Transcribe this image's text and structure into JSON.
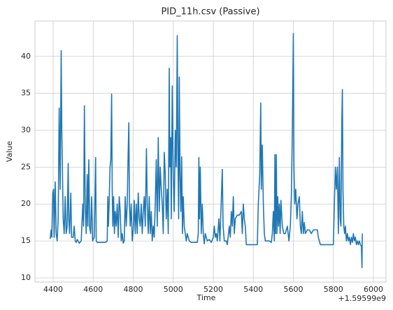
{
  "chart_data": {
    "type": "line",
    "title": "PID_11h.csv (Passive)",
    "xlabel": "Time",
    "ylabel": "Value",
    "x_offset_label": "+1.59599e9",
    "color": "#1f77b4",
    "grid": true,
    "xlim": [
      4309,
      6063
    ],
    "ylim": [
      9.43,
      44.8
    ],
    "xticks": [
      4400,
      4600,
      4800,
      5000,
      5200,
      5400,
      5600,
      5800,
      6000
    ],
    "yticks": [
      10,
      15,
      20,
      25,
      30,
      35,
      40
    ],
    "x": [
      4385,
      4390,
      4393,
      4398,
      4402,
      4405,
      4410,
      4415,
      4420,
      4425,
      4430,
      4435,
      4440,
      4443,
      4446,
      4450,
      4455,
      4460,
      4465,
      4470,
      4475,
      4478,
      4482,
      4488,
      4492,
      4500,
      4505,
      4510,
      4515,
      4520,
      4530,
      4540,
      4548,
      4552,
      4556,
      4560,
      4565,
      4570,
      4573,
      4578,
      4582,
      4587,
      4592,
      4597,
      4605,
      4608,
      4612,
      4615,
      4620,
      4640,
      4660,
      4670,
      4673,
      4676,
      4680,
      4684,
      4688,
      4692,
      4695,
      4698,
      4702,
      4706,
      4710,
      4715,
      4720,
      4725,
      4730,
      4735,
      4740,
      4745,
      4750,
      4755,
      4760,
      4765,
      4770,
      4774,
      4778,
      4781,
      4785,
      4790,
      4795,
      4800,
      4805,
      4810,
      4815,
      4820,
      4825,
      4830,
      4835,
      4840,
      4845,
      4850,
      4855,
      4860,
      4866,
      4870,
      4875,
      4880,
      4885,
      4890,
      4895,
      4900,
      4905,
      4910,
      4915,
      4920,
      4925,
      4930,
      4935,
      4940,
      4945,
      4950,
      4955,
      4960,
      4965,
      4970,
      4975,
      4980,
      4983,
      4987,
      4990,
      4995,
      5000,
      5005,
      5010,
      5015,
      5020,
      5023,
      5027,
      5030,
      5034,
      5038,
      5042,
      5046,
      5050,
      5055,
      5060,
      5065,
      5070,
      5075,
      5080,
      5090,
      5100,
      5110,
      5120,
      5125,
      5128,
      5131,
      5135,
      5140,
      5145,
      5150,
      5155,
      5160,
      5170,
      5180,
      5190,
      5200,
      5205,
      5210,
      5215,
      5220,
      5228,
      5233,
      5240,
      5245,
      5249,
      5255,
      5265,
      5270,
      5280,
      5285,
      5290,
      5295,
      5300,
      5305,
      5310,
      5320,
      5330,
      5340,
      5345,
      5350,
      5355,
      5360,
      5365,
      5380,
      5400,
      5420,
      5425,
      5432,
      5437,
      5440,
      5445,
      5450,
      5455,
      5460,
      5470,
      5480,
      5490,
      5495,
      5500,
      5505,
      5508,
      5511,
      5515,
      5518,
      5522,
      5526,
      5530,
      5534,
      5538,
      5545,
      5552,
      5560,
      5570,
      5578,
      5585,
      5590,
      5595,
      5600,
      5603,
      5607,
      5612,
      5618,
      5623,
      5630,
      5635,
      5640,
      5645,
      5650,
      5655,
      5660,
      5670,
      5680,
      5690,
      5700,
      5710,
      5720,
      5725,
      5730,
      5735,
      5760,
      5780,
      5800,
      5805,
      5810,
      5815,
      5820,
      5825,
      5830,
      5834,
      5838,
      5842,
      5845,
      5848,
      5852,
      5856,
      5860,
      5865,
      5870,
      5875,
      5880,
      5885,
      5890,
      5895,
      5900,
      5905,
      5910,
      5915,
      5920,
      5925,
      5930,
      5935,
      5940,
      5943,
      5944,
      5945
    ],
    "values": [
      15.3,
      16.5,
      15.5,
      21.5,
      22,
      15.5,
      23,
      16,
      15,
      18,
      33,
      22,
      40.8,
      30,
      25,
      18,
      16,
      21,
      16,
      17,
      25.5,
      18,
      16,
      21.5,
      15.5,
      15.5,
      17,
      15,
      14.8,
      15.2,
      14.7,
      15,
      20,
      17,
      33.3,
      20,
      16,
      24,
      17,
      26,
      17,
      16,
      21,
      15,
      15.5,
      20,
      26.3,
      15,
      14.8,
      14.8,
      14.8,
      15,
      21,
      17,
      20.5,
      25,
      26,
      34.9,
      22,
      17,
      21,
      16,
      19,
      17,
      20,
      15.5,
      21,
      19,
      15,
      16,
      14.7,
      15,
      21,
      17,
      20,
      26,
      31,
      20,
      17,
      20,
      15,
      16.5,
      20.5,
      16,
      20,
      16,
      21.5,
      18,
      17,
      20,
      16,
      19,
      21,
      17,
      27.5,
      20,
      16,
      21,
      16,
      19,
      15,
      17,
      15.5,
      20,
      26,
      17,
      29,
      19,
      25,
      22,
      20,
      16,
      27,
      24,
      18,
      22,
      16,
      38.4,
      25,
      29,
      18,
      36,
      24,
      19,
      30,
      25,
      42.8,
      27,
      18,
      37.2,
      24,
      19,
      26.4,
      16,
      21,
      17,
      16,
      15,
      16,
      15.5,
      15,
      14.8,
      14.8,
      14.8,
      14.8,
      16,
      26.3,
      18,
      25,
      16,
      20,
      16,
      14.6,
      16,
      15,
      15.2,
      14.8,
      15.5,
      17,
      15.5,
      16,
      15,
      18,
      15,
      20.5,
      24.7,
      17,
      15,
      15,
      14.5,
      17,
      15.5,
      19,
      17,
      21,
      16,
      18,
      18.5,
      18.5,
      19,
      16,
      20,
      18,
      17,
      14.5,
      14.5,
      14.5,
      14.5,
      20,
      24,
      33.7,
      22,
      28,
      20,
      16,
      15,
      15,
      15,
      14.8,
      16,
      19,
      15,
      26.7,
      16,
      26.7,
      16,
      21,
      17,
      20,
      16,
      20.5,
      17,
      16,
      16,
      17,
      15,
      17,
      21,
      30,
      43.1,
      25,
      20,
      22,
      18,
      20,
      21,
      17,
      16,
      19,
      16,
      17.5,
      16,
      16.5,
      16.5,
      16,
      16.5,
      16.5,
      16.5,
      15.5,
      15,
      14.5,
      14.5,
      14.5,
      14.5,
      20,
      25,
      22,
      25,
      16,
      26.3,
      18,
      17,
      31,
      35.5,
      22,
      17,
      16,
      17,
      15,
      16,
      15,
      15.5,
      14.5,
      15.5,
      14.8,
      16,
      15,
      15.5,
      14.5,
      15,
      14.5,
      15,
      14.5,
      14.3,
      11.4,
      15,
      16
    ]
  }
}
